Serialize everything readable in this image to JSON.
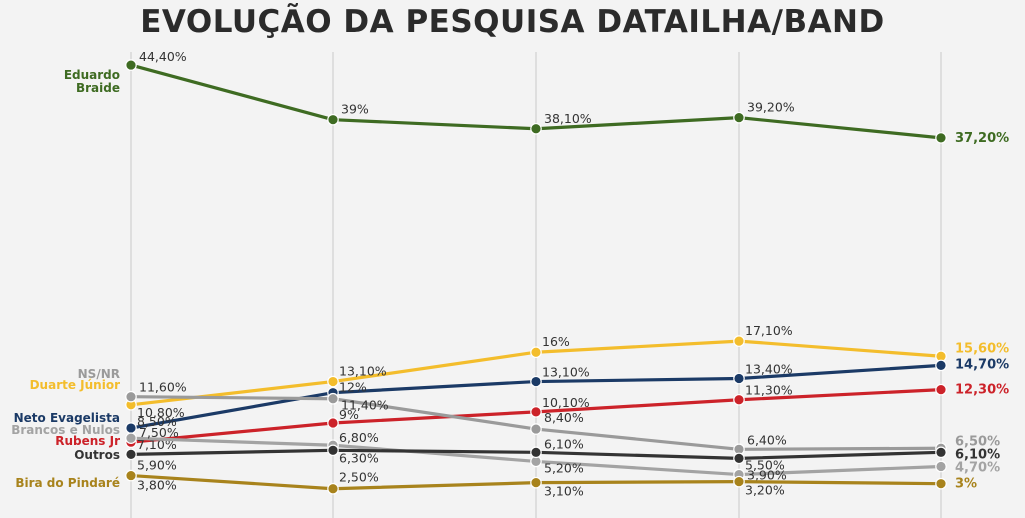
{
  "chart_data": {
    "type": "line",
    "title": "EVOLUÇÃO DA PESQUISA DATAILHA/BAND",
    "x": [
      "",
      "",
      "",
      "",
      ""
    ],
    "ylim": [
      0,
      45
    ],
    "grid": "vertical",
    "series": [
      {
        "name": "Eduardo Braide",
        "color": "#3e6b22",
        "values": [
          44.4,
          39,
          38.1,
          39.2,
          37.2
        ],
        "labels": [
          "44,40%",
          "39%",
          "38,10%",
          "39,20%",
          "37,20%"
        ]
      },
      {
        "name": "Duarte Júnior",
        "color": "#f3bd2c",
        "values": [
          10.8,
          13.1,
          16,
          17.1,
          15.6
        ],
        "labels": [
          "10,80%",
          "13,10%",
          "16%",
          "17,10%",
          "15,60%"
        ]
      },
      {
        "name": "Neto Evagelista",
        "color": "#1b3a66",
        "values": [
          8.5,
          12,
          13.1,
          13.4,
          14.7
        ],
        "labels": [
          "8,50%",
          "12%",
          "13,10%",
          "13,40%",
          "14,70%"
        ]
      },
      {
        "name": "Rubens Jr",
        "color": "#cc2229",
        "values": [
          7.1,
          9,
          10.1,
          11.3,
          12.3
        ],
        "labels": [
          "7,10%",
          "9%",
          "10,10%",
          "11,30%",
          "12,30%"
        ]
      },
      {
        "name": "NS/NR",
        "color": "#9a9a9a",
        "values": [
          11.6,
          11.4,
          8.4,
          6.4,
          6.5
        ],
        "labels": [
          "11,60%",
          "11,40%",
          "8,40%",
          "6,40%",
          "6,50%"
        ]
      },
      {
        "name": "Brancos e Nulos",
        "color": "#a3a3a3",
        "values": [
          7.5,
          6.8,
          5.2,
          3.9,
          4.7
        ],
        "labels": [
          "7,50%",
          "6,80%",
          "5,20%",
          "3,90%",
          "4,70%"
        ]
      },
      {
        "name": "Outros",
        "color": "#333333",
        "values": [
          5.9,
          6.3,
          6.1,
          5.5,
          6.1
        ],
        "labels": [
          "5,90%",
          "6,30%",
          "6,10%",
          "5,50%",
          "6,10%"
        ]
      },
      {
        "name": "Bira do Pindaré",
        "color": "#a8831c",
        "values": [
          3.8,
          2.5,
          3.1,
          3.2,
          3
        ],
        "labels": [
          "3,80%",
          "2,50%",
          "3,10%",
          "3,20%",
          "3%"
        ]
      }
    ]
  }
}
